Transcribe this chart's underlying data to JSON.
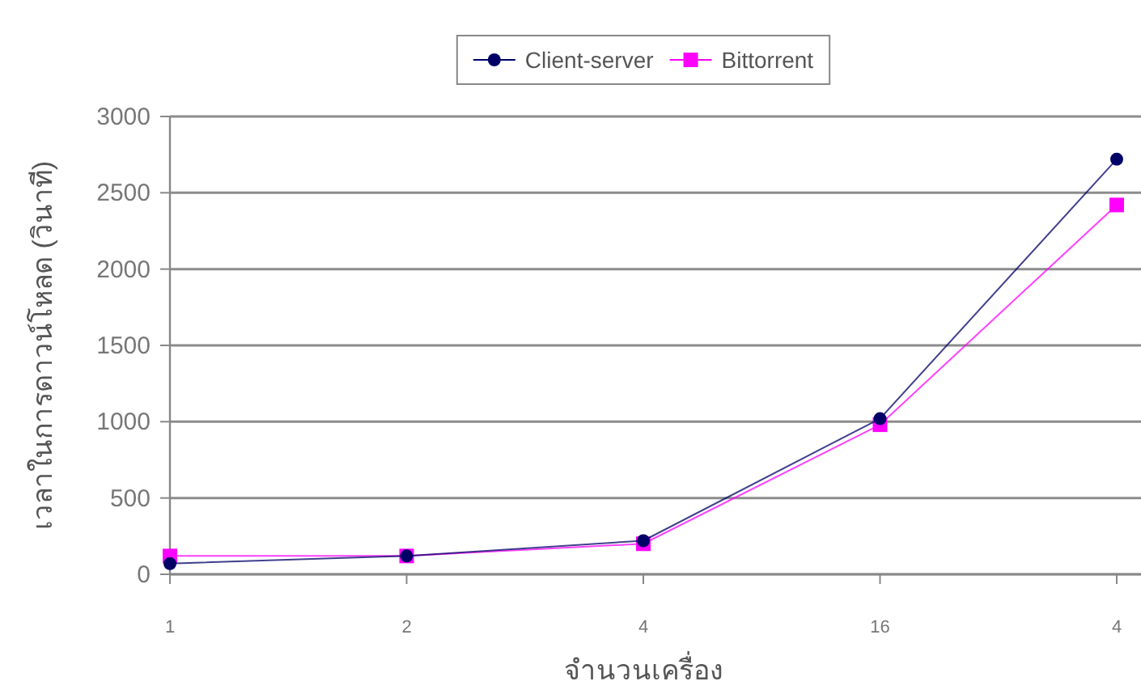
{
  "chart_data": {
    "type": "line",
    "xlabel": "จำนวนเครื่อง",
    "ylabel": "เวลาในการดาวน์โหลด (วินาที)",
    "categories": [
      "1",
      "2",
      "4",
      "16",
      "4"
    ],
    "series": [
      {
        "name": "Client-server",
        "color": "#000066",
        "marker": "circle",
        "values": [
          70,
          120,
          220,
          1020,
          2720
        ]
      },
      {
        "name": "Bittorrent",
        "color": "#ff00ff",
        "marker": "square",
        "values": [
          120,
          120,
          200,
          980,
          2420
        ]
      }
    ],
    "ylim": [
      0,
      3000
    ],
    "yticks": [
      0,
      500,
      1000,
      1500,
      2000,
      2500,
      3000
    ],
    "grid": "y",
    "legend": "top"
  }
}
